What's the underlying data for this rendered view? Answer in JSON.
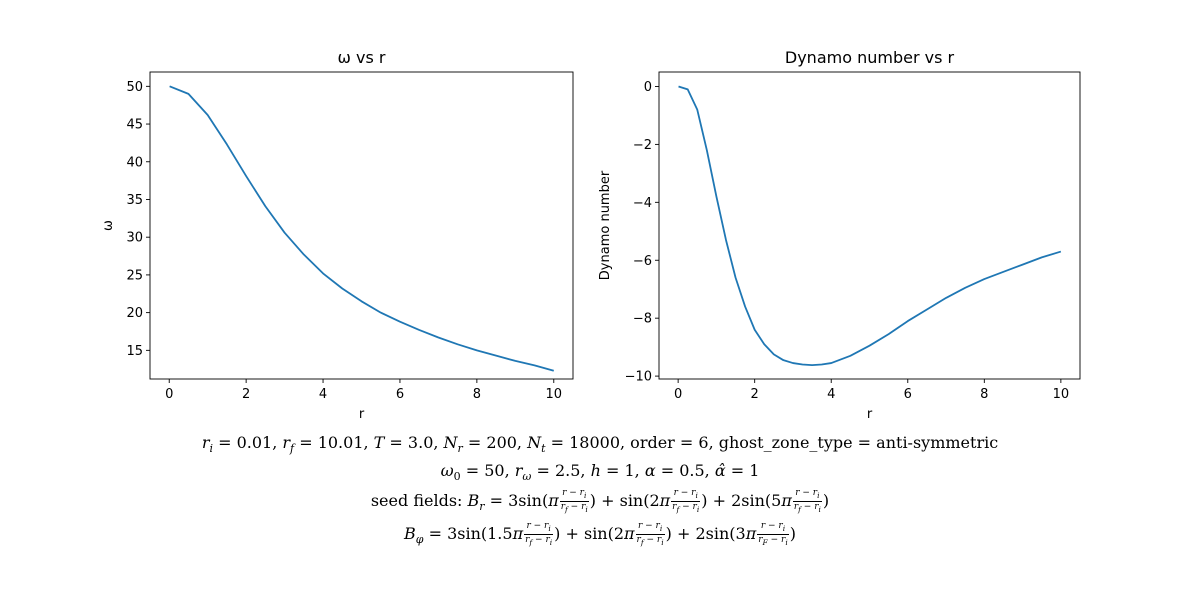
{
  "chart_data": [
    {
      "type": "line",
      "title": "ω vs r",
      "xlabel": "r",
      "ylabel": "ω",
      "xlim": [
        -0.5,
        10.5
      ],
      "ylim": [
        11.2,
        51.9
      ],
      "xticks": [
        0,
        2,
        4,
        6,
        8,
        10
      ],
      "yticks": [
        15,
        20,
        25,
        30,
        35,
        40,
        45,
        50
      ],
      "grid": false,
      "series": [
        {
          "color": "#1f77b4",
          "x": [
            0.01,
            0.5,
            1,
            1.5,
            2,
            2.5,
            3,
            3.5,
            4,
            4.5,
            5,
            5.5,
            6,
            6.5,
            7,
            7.5,
            8,
            8.5,
            9,
            9.5,
            10
          ],
          "y": [
            50.0,
            49.0,
            46.2,
            42.3,
            38.1,
            34.1,
            30.6,
            27.7,
            25.2,
            23.2,
            21.5,
            20.0,
            18.8,
            17.7,
            16.7,
            15.8,
            15.0,
            14.3,
            13.6,
            13.0,
            12.3
          ]
        }
      ]
    },
    {
      "type": "line",
      "title": "Dynamo number vs r",
      "xlabel": "r",
      "ylabel": "Dynamo number",
      "xlim": [
        -0.5,
        10.5
      ],
      "ylim": [
        -10.1,
        0.5
      ],
      "xticks": [
        0,
        2,
        4,
        6,
        8,
        10
      ],
      "yticks": [
        0,
        -2,
        -4,
        -6,
        -8,
        -10
      ],
      "grid": false,
      "series": [
        {
          "color": "#1f77b4",
          "x": [
            0.01,
            0.25,
            0.5,
            0.75,
            1,
            1.25,
            1.5,
            1.75,
            2,
            2.25,
            2.5,
            2.75,
            3,
            3.25,
            3.5,
            3.75,
            4,
            4.5,
            5,
            5.5,
            6,
            6.5,
            7,
            7.5,
            8,
            8.5,
            9,
            9.5,
            10
          ],
          "y": [
            0,
            -0.1,
            -0.8,
            -2.2,
            -3.8,
            -5.3,
            -6.6,
            -7.6,
            -8.4,
            -8.9,
            -9.25,
            -9.45,
            -9.55,
            -9.6,
            -9.62,
            -9.6,
            -9.55,
            -9.3,
            -8.95,
            -8.55,
            -8.1,
            -7.7,
            -7.3,
            -6.95,
            -6.65,
            -6.4,
            -6.15,
            -5.9,
            -5.7
          ]
        }
      ]
    }
  ],
  "caption": {
    "line1": {
      "ri": "r_i = 0.01",
      "rf": "r_f = 10.01",
      "T": "T = 3.0",
      "Nr": "N_r = 200",
      "Nt": "N_t = 18000",
      "order": "order = 6",
      "ghost": "ghost_zone_type = anti-symmetric"
    },
    "line2": "ω_0 = 50, r_ω = 2.5, h = 1, α = 0.5, α̂ = 1",
    "line3": {
      "prefix": "seed fields:",
      "lhs": "B_r",
      "terms": [
        {
          "coef": "3",
          "factor": ""
        },
        {
          "coef": "",
          "factor": "2"
        },
        {
          "coef": "2",
          "factor": "5"
        }
      ]
    },
    "line4": {
      "lhs": "B_φ",
      "terms": [
        {
          "coef": "3",
          "factor": "1.5"
        },
        {
          "coef": "",
          "factor": "2"
        },
        {
          "coef": "2",
          "factor": "3"
        }
      ]
    }
  }
}
